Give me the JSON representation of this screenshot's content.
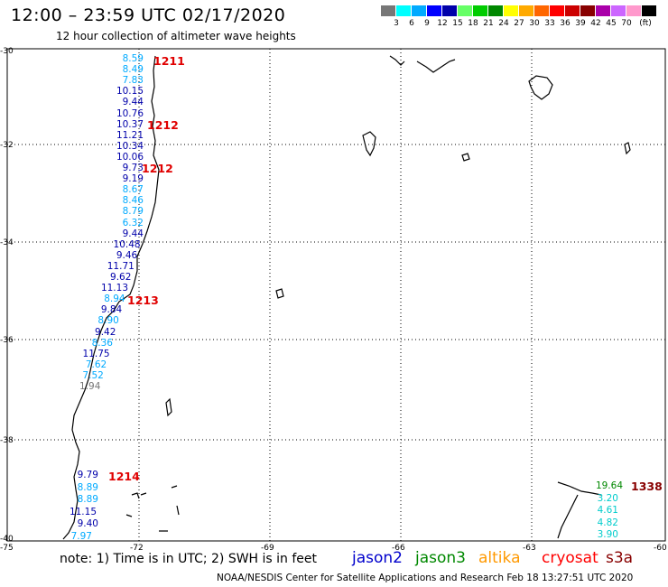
{
  "title": "12:00 – 23:59 UTC 02/17/2020",
  "subtitle": "12 hour collection of altimeter wave heights",
  "colorbar": {
    "colors": [
      "#777777",
      "#00ffff",
      "#00aaff",
      "#0000ff",
      "#0000aa",
      "#66ff66",
      "#00cc00",
      "#008800",
      "#ffff00",
      "#ffaa00",
      "#ff6600",
      "#ff0000",
      "#cc0000",
      "#880000",
      "#aa00aa",
      "#cc66ff",
      "#ff99cc",
      "#000000"
    ],
    "labels": [
      "3",
      "6",
      "9",
      "12",
      "15",
      "18",
      "21",
      "24",
      "27",
      "30",
      "33",
      "36",
      "39",
      "42",
      "45",
      "70"
    ],
    "unit": "(ft)"
  },
  "axes": {
    "lat_labels": [
      "-30",
      "-32",
      "-34",
      "-36",
      "-38",
      "-40"
    ],
    "lon_labels": [
      "-75",
      "-72",
      "-69",
      "-66",
      "-63",
      "-60"
    ]
  },
  "obs_west": [
    {
      "v": "8.59",
      "c": "#00aaff"
    },
    {
      "v": "8.49",
      "c": "#00aaff"
    },
    {
      "v": "7.83",
      "c": "#00aaff"
    },
    {
      "v": "10.15",
      "c": "#0000aa"
    },
    {
      "v": "9.44",
      "c": "#0000aa"
    },
    {
      "v": "10.76",
      "c": "#0000aa"
    },
    {
      "v": "10.37",
      "c": "#0000aa"
    },
    {
      "v": "11.21",
      "c": "#0000aa"
    },
    {
      "v": "10.34",
      "c": "#0000aa"
    },
    {
      "v": "10.06",
      "c": "#0000aa"
    },
    {
      "v": "9.73",
      "c": "#0000aa"
    },
    {
      "v": "9.19",
      "c": "#0000aa"
    },
    {
      "v": "8.67",
      "c": "#00aaff"
    },
    {
      "v": "8.46",
      "c": "#00aaff"
    },
    {
      "v": "8.79",
      "c": "#00aaff"
    },
    {
      "v": "6.32",
      "c": "#00aaff"
    },
    {
      "v": "9.44",
      "c": "#0000aa"
    },
    {
      "v": "10.48",
      "c": "#0000aa"
    },
    {
      "v": "9.46",
      "c": "#0000aa"
    },
    {
      "v": "11.71",
      "c": "#0000aa"
    },
    {
      "v": "9.62",
      "c": "#0000aa"
    },
    {
      "v": "11.13",
      "c": "#0000aa"
    },
    {
      "v": "8.94",
      "c": "#00aaff"
    },
    {
      "v": "9.84",
      "c": "#0000aa"
    },
    {
      "v": "8.90",
      "c": "#00aaff"
    },
    {
      "v": "9.42",
      "c": "#0000aa"
    },
    {
      "v": "8.36",
      "c": "#00aaff"
    },
    {
      "v": "11.75",
      "c": "#0000aa"
    },
    {
      "v": "7.62",
      "c": "#00aaff"
    },
    {
      "v": "7.52",
      "c": "#00aaff"
    },
    {
      "v": "1.94",
      "c": "#777777"
    }
  ],
  "obs_south": [
    {
      "v": "9.79",
      "c": "#0000aa"
    },
    {
      "v": "8.89",
      "c": "#00aaff"
    },
    {
      "v": "8.89",
      "c": "#00aaff"
    },
    {
      "v": "11.15",
      "c": "#0000aa"
    },
    {
      "v": "9.40",
      "c": "#0000aa"
    },
    {
      "v": "7.97",
      "c": "#00aaff"
    }
  ],
  "obs_east": [
    {
      "v": "19.64",
      "c": "#008800"
    },
    {
      "v": "3.20",
      "c": "#00cccc"
    },
    {
      "v": "4.61",
      "c": "#00cccc"
    },
    {
      "v": "4.82",
      "c": "#00cccc"
    },
    {
      "v": "3.90",
      "c": "#00cccc"
    }
  ],
  "track_times": [
    "1211",
    "1212",
    "1212",
    "1213",
    "1214",
    "1338"
  ],
  "note": "note:  1) Time is in UTC; 2) SWH is in feet",
  "satellites": [
    {
      "name": "jason2",
      "color": "#0000cc"
    },
    {
      "name": "jason3",
      "color": "#008800"
    },
    {
      "name": "altika",
      "color": "#ff9900"
    },
    {
      "name": "cryosat",
      "color": "#ff0000"
    },
    {
      "name": "s3a",
      "color": "#880000"
    }
  ],
  "credit": "NOAA/NESDIS Center for Satellite Applications and Research    Feb 18 13:27:51 UTC 2020"
}
